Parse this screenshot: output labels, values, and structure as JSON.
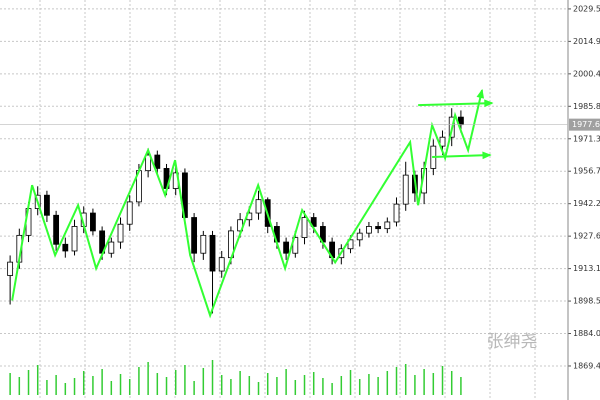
{
  "chart_data": {
    "type": "candlestick",
    "x": [
      0,
      1,
      2,
      3,
      4,
      5,
      6,
      7,
      8,
      9,
      10,
      11,
      12,
      13,
      14,
      15,
      16,
      17,
      18,
      19,
      20,
      21,
      22,
      23,
      24,
      25,
      26,
      27,
      28,
      29,
      30,
      31,
      32,
      33,
      34,
      35,
      36,
      37,
      38,
      39,
      40,
      41,
      42,
      43,
      44,
      45,
      46,
      47,
      48,
      49
    ],
    "open": [
      1910,
      1916,
      1928,
      1940,
      1946,
      1937,
      1924,
      1921,
      1932,
      1938,
      1930,
      1920,
      1925,
      1933,
      1943,
      1957,
      1964,
      1958,
      1949,
      1956,
      1936,
      1920,
      1928,
      1912,
      1918,
      1930,
      1935,
      1938,
      1944,
      1932,
      1925,
      1920,
      1927,
      1936,
      1932,
      1925,
      1918,
      1922,
      1926,
      1929,
      1932,
      1931,
      1934,
      1942,
      1955,
      1947,
      1958,
      1968,
      1972,
      1981
    ],
    "high": [
      1919,
      1931,
      1943,
      1950,
      1948,
      1939,
      1927,
      1935,
      1941,
      1940,
      1932,
      1927,
      1936,
      1946,
      1960,
      1967,
      1966,
      1960,
      1959,
      1958,
      1938,
      1930,
      1930,
      1921,
      1932,
      1938,
      1941,
      1948,
      1945,
      1934,
      1927,
      1930,
      1939,
      1938,
      1934,
      1927,
      1924,
      1928,
      1931,
      1934,
      1934,
      1936,
      1945,
      1961,
      1957,
      1961,
      1971,
      1975,
      1985,
      1984
    ],
    "low": [
      1897,
      1913,
      1925,
      1937,
      1934,
      1921,
      1918,
      1919,
      1929,
      1928,
      1917,
      1918,
      1922,
      1930,
      1941,
      1954,
      1955,
      1946,
      1946,
      1933,
      1916,
      1917,
      1893,
      1909,
      1915,
      1927,
      1932,
      1935,
      1929,
      1922,
      1917,
      1918,
      1924,
      1929,
      1922,
      1915,
      1915,
      1920,
      1923,
      1927,
      1929,
      1929,
      1932,
      1939,
      1943,
      1942,
      1955,
      1964,
      1968,
      1974
    ],
    "close": [
      1916,
      1928,
      1940,
      1946,
      1937,
      1924,
      1921,
      1932,
      1938,
      1930,
      1920,
      1925,
      1933,
      1943,
      1957,
      1964,
      1958,
      1949,
      1956,
      1936,
      1920,
      1928,
      1912,
      1918,
      1930,
      1935,
      1938,
      1944,
      1932,
      1925,
      1920,
      1927,
      1936,
      1932,
      1925,
      1918,
      1922,
      1926,
      1929,
      1932,
      1931,
      1934,
      1942,
      1955,
      1947,
      1958,
      1968,
      1972,
      1981,
      1977.63
    ],
    "volume": [
      22,
      18,
      25,
      30,
      15,
      20,
      12,
      17,
      24,
      19,
      26,
      14,
      21,
      16,
      28,
      33,
      22,
      18,
      25,
      30,
      14,
      27,
      35,
      20,
      16,
      24,
      19,
      13,
      22,
      18,
      26,
      15,
      20,
      23,
      17,
      12,
      19,
      25,
      16,
      21,
      18,
      24,
      28,
      31,
      20,
      26,
      22,
      29,
      24,
      18
    ],
    "volume_lim": [
      0,
      100
    ],
    "xlim": [
      -1.1,
      60.64
    ],
    "ylim": [
      1854.2,
      2033.5
    ],
    "yticks": [
      {
        "value": 2029.5,
        "label": "2029.50"
      },
      2014.95,
      {
        "value": 2000.4,
        "label": "2000.40"
      },
      1985.85,
      {
        "value": 1971.3,
        "label": "1971.30"
      },
      1956.75,
      {
        "value": 1942.2,
        "label": "1942.20"
      },
      1927.65,
      {
        "value": 1913.1,
        "label": "1913.10"
      },
      1898.55,
      {
        "value": 1884,
        "label": "1884.00"
      },
      1869.45
    ],
    "grid": true,
    "last_price": 1977.63,
    "arrows": [
      {
        "x": [
          0.22,
          2.39,
          4.89,
          7.39,
          9.35,
          15.0,
          16.85,
          17.93,
          19.57,
          21.74,
          26.96,
          29.89,
          31.74,
          35.33,
          43.48,
          44.35,
          45.87,
          47.28,
          48.37,
          49.78,
          51.3
        ],
        "y": [
          1898.8,
          1950.5,
          1919.1,
          1941.5,
          1913.2,
          1966.2,
          1946,
          1961.7,
          1919.1,
          1892.1,
          1950.5,
          1913.2,
          1939.3,
          1915.9,
          1969.8,
          1941.5,
          1977.4,
          1962.6,
          1981.9,
          1966.2,
          1993.1
        ]
      },
      {
        "x": [
          44.35,
          52.4
        ],
        "y": [
          1986.4,
          1987.3
        ]
      },
      {
        "x": [
          45.87,
          52.2
        ],
        "y": [
          1963.1,
          1964
        ]
      }
    ],
    "arrow_color": "#33ff33",
    "watermark": "张绅尧"
  }
}
